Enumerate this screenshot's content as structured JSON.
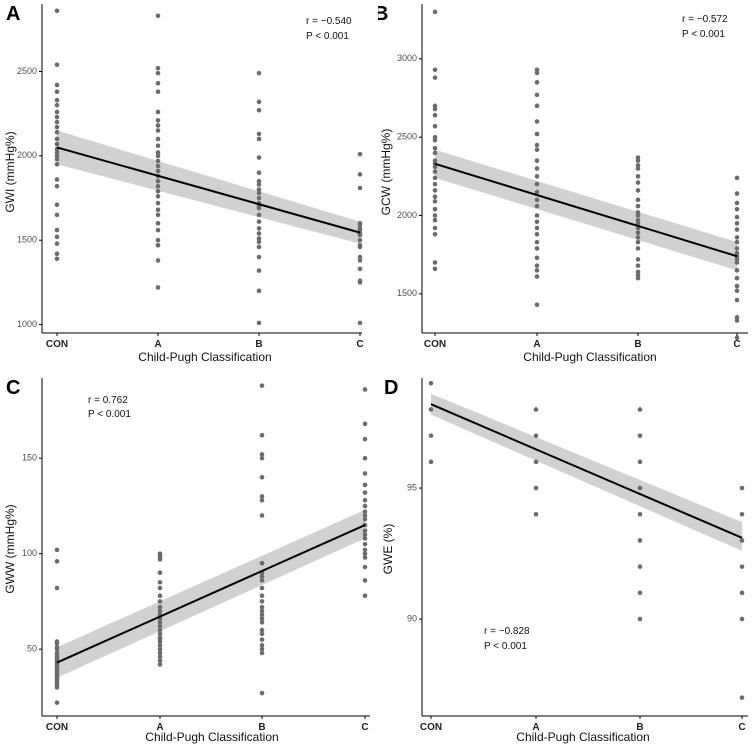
{
  "chart_data": [
    {
      "id": "A",
      "type": "scatter",
      "panel_label": "A",
      "xlabel": "Child-Pugh Classification",
      "ylabel": "GWI (mmHg%)",
      "categories": [
        "CON",
        "A",
        "B",
        "C"
      ],
      "ylim": [
        950,
        2900
      ],
      "yticks": [
        1000,
        1500,
        2000,
        2500
      ],
      "annotations": [
        "r = −0.540",
        "P < 0.001"
      ],
      "annotation_position": "top-right",
      "fit": {
        "start": 2050,
        "end": 1545,
        "ci_start": [
          1950,
          2150
        ],
        "ci_end": [
          1480,
          1610
        ]
      },
      "points": [
        [
          2860,
          2540,
          2420,
          2380,
          2330,
          2300,
          2260,
          2230,
          2200,
          2170,
          2140,
          2100,
          2070,
          2040,
          2020,
          2000,
          1980,
          1950,
          1860,
          1820,
          1710,
          1650,
          1560,
          1520,
          1480,
          1420,
          1390
        ],
        [
          2830,
          2520,
          2490,
          2430,
          2380,
          2260,
          2210,
          2180,
          2150,
          2100,
          2060,
          2020,
          2000,
          1970,
          1940,
          1910,
          1880,
          1850,
          1820,
          1790,
          1760,
          1720,
          1680,
          1650,
          1600,
          1560,
          1500,
          1470,
          1380,
          1220
        ],
        [
          2490,
          2320,
          2270,
          2130,
          2100,
          1990,
          1900,
          1850,
          1830,
          1800,
          1780,
          1750,
          1720,
          1700,
          1690,
          1650,
          1610,
          1570,
          1540,
          1510,
          1490,
          1460,
          1400,
          1320,
          1200,
          1010
        ],
        [
          2010,
          1890,
          1810,
          1600,
          1590,
          1570,
          1560,
          1540,
          1530,
          1500,
          1470,
          1460,
          1400,
          1380,
          1330,
          1260,
          1250,
          1010
        ]
      ]
    },
    {
      "id": "B",
      "type": "scatter",
      "panel_label": "B",
      "xlabel": "Child-Pugh Classification",
      "ylabel": "GCW (mmHg%)",
      "categories": [
        "CON",
        "A",
        "B",
        "C"
      ],
      "ylim": [
        1250,
        3350
      ],
      "yticks": [
        1500,
        2000,
        2500,
        3000
      ],
      "annotations": [
        "r = −0.572",
        "P < 0.001"
      ],
      "annotation_position": "top-right",
      "fit": {
        "start": 2330,
        "end": 1740,
        "ci_start": [
          2240,
          2420
        ],
        "ci_end": [
          1650,
          1830
        ]
      },
      "points": [
        [
          3300,
          2930,
          2880,
          2700,
          2680,
          2640,
          2570,
          2500,
          2480,
          2430,
          2400,
          2350,
          2330,
          2310,
          2280,
          2240,
          2200,
          2160,
          2120,
          2090,
          2040,
          2000,
          1970,
          1920,
          1880,
          1700,
          1660
        ],
        [
          2930,
          2910,
          2850,
          2770,
          2700,
          2600,
          2520,
          2450,
          2420,
          2350,
          2300,
          2250,
          2200,
          2150,
          2100,
          2060,
          2000,
          1960,
          1920,
          1880,
          1830,
          1790,
          1730,
          1680,
          1650,
          1610,
          1430
        ],
        [
          2370,
          2350,
          2320,
          2300,
          2250,
          2210,
          2160,
          2100,
          2060,
          2020,
          2000,
          1970,
          1950,
          1920,
          1890,
          1860,
          1830,
          1790,
          1720,
          1680,
          1640,
          1620,
          1600
        ],
        [
          2240,
          2140,
          2080,
          2040,
          1990,
          1950,
          1910,
          1860,
          1830,
          1790,
          1760,
          1740,
          1720,
          1700,
          1650,
          1600,
          1550,
          1520,
          1460,
          1350,
          1330,
          1220
        ]
      ]
    },
    {
      "id": "C",
      "type": "scatter",
      "panel_label": "C",
      "xlabel": "Child-Pugh Classification",
      "ylabel": "GWW (mmHg%)",
      "categories": [
        "CON",
        "A",
        "B",
        "C"
      ],
      "ylim": [
        15,
        192
      ],
      "yticks": [
        50,
        100,
        150
      ],
      "annotations": [
        "r = 0.762",
        "P < 0.001"
      ],
      "annotation_position": "top-left",
      "fit": {
        "start": 43,
        "end": 115,
        "ci_start": [
          35,
          51
        ],
        "ci_end": [
          108,
          123
        ]
      },
      "points": [
        [
          102,
          96,
          82,
          54,
          53,
          51,
          50,
          48,
          47,
          46,
          45,
          44,
          43,
          42,
          41,
          40,
          39,
          38,
          37,
          36,
          35,
          34,
          33,
          32,
          31,
          30,
          22
        ],
        [
          100,
          99,
          98,
          97,
          90,
          85,
          82,
          78,
          75,
          72,
          70,
          68,
          66,
          64,
          62,
          60,
          58,
          56,
          55,
          54,
          52,
          50,
          48,
          46,
          44,
          42
        ],
        [
          188,
          162,
          152,
          150,
          140,
          130,
          128,
          120,
          95,
          90,
          88,
          86,
          82,
          78,
          75,
          72,
          70,
          68,
          66,
          64,
          60,
          58,
          55,
          52,
          50,
          48,
          27
        ],
        [
          186,
          168,
          160,
          150,
          142,
          136,
          132,
          128,
          125,
          122,
          120,
          118,
          115,
          112,
          110,
          108,
          105,
          102,
          100,
          98,
          93,
          86,
          78
        ]
      ]
    },
    {
      "id": "D",
      "type": "scatter",
      "panel_label": "D",
      "xlabel": "Child-Pugh Classification",
      "ylabel": "GWE (%)",
      "categories": [
        "CON",
        "A",
        "B",
        "C"
      ],
      "ylim": [
        86.3,
        99.2
      ],
      "yticks": [
        90,
        95
      ],
      "annotations": [
        "r = −0.828",
        "P < 0.001"
      ],
      "annotation_position": "bottom-left",
      "fit": {
        "start": 98.2,
        "end": 93.1,
        "ci_start": [
          97.8,
          98.6
        ],
        "ci_end": [
          92.6,
          93.7
        ]
      },
      "points": [
        [
          99,
          98,
          97,
          96
        ],
        [
          98,
          97,
          96,
          95,
          94
        ],
        [
          98,
          97,
          96,
          95,
          94,
          93,
          92,
          91,
          90
        ],
        [
          95,
          94,
          93,
          92,
          91,
          90,
          87
        ]
      ]
    }
  ]
}
